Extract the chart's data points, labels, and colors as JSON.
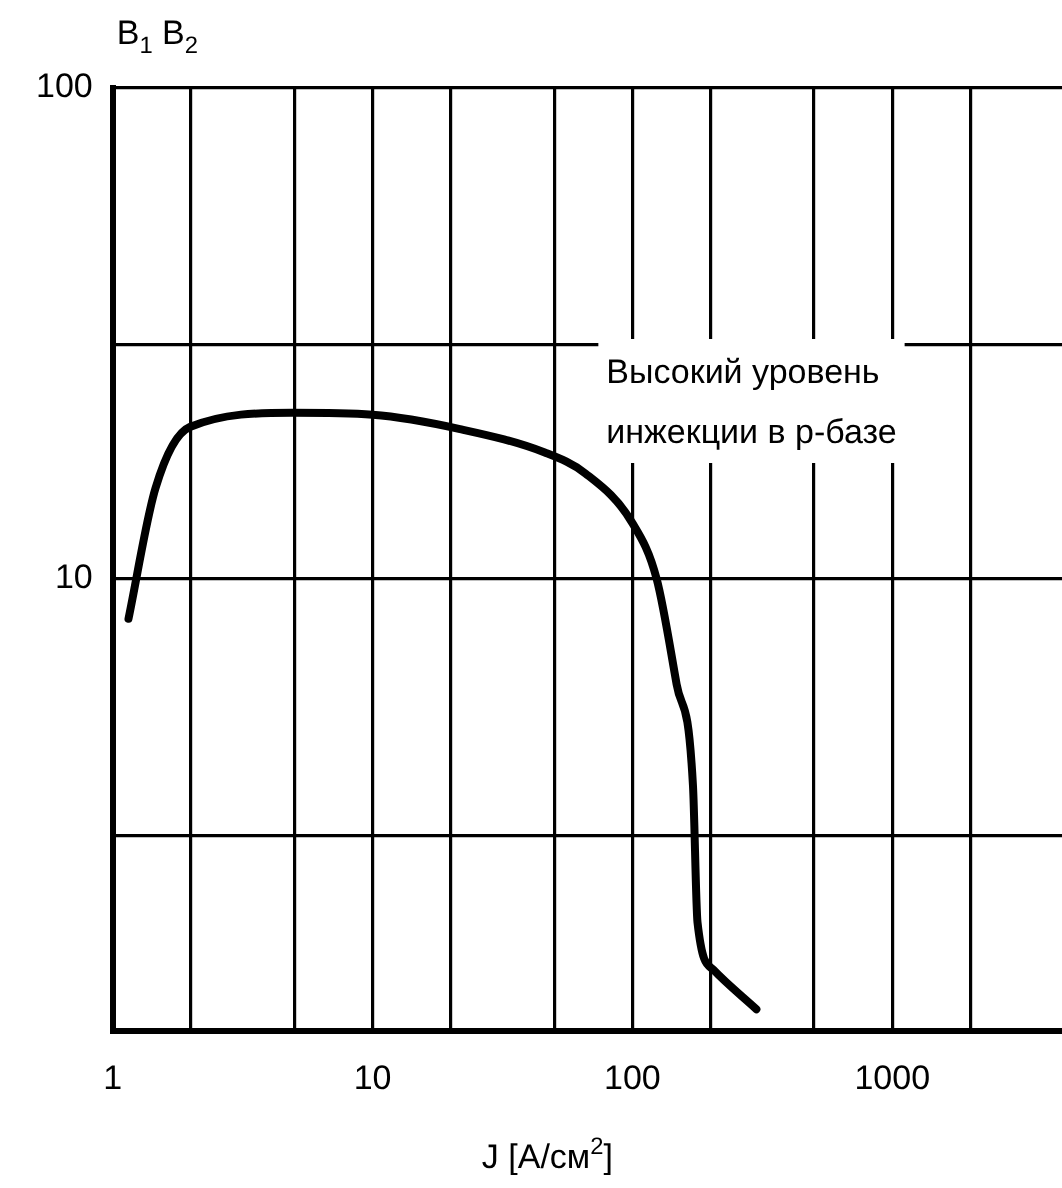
{
  "chart_data": {
    "type": "line",
    "xlabel": "J [A/см$^{2}$]",
    "ylabel": "B$_{1}$ B$_{2}$",
    "annotations": [
      "Высокий уровень\nинжекции в p-базе"
    ],
    "log": "xy",
    "grid": true,
    "legend": false,
    "marker": "none",
    "line_style": "solid",
    "xlim": [
      1,
      4500
    ],
    "xticks": [
      1,
      {
        "value": 2,
        "label": null
      },
      {
        "value": 5,
        "label": null
      },
      10,
      {
        "value": 20,
        "label": null
      },
      {
        "value": 50,
        "label": null
      },
      100,
      {
        "value": 200,
        "label": null
      },
      {
        "value": 500,
        "label": null
      },
      1000,
      {
        "value": 2000,
        "label": null
      }
    ],
    "ylim": [
      1.2,
      100
    ],
    "yticks": [
      {
        "value": 3,
        "label": null
      },
      10,
      {
        "value": 30,
        "label": null
      },
      100
    ],
    "x": [
      1.15,
      1.46,
      1.98,
      4.9,
      10,
      21.7,
      46,
      66,
      100,
      124,
      148,
      171,
      178,
      205,
      300
    ],
    "series": [
      {
        "color": "#000000",
        "values": [
          8.3,
          15.3,
          20.4,
          21.8,
          21.6,
          20.2,
          18.1,
          16.4,
          13,
          10,
          6.1,
          3.8,
          2.0,
          1.6,
          1.33
        ]
      }
    ]
  }
}
